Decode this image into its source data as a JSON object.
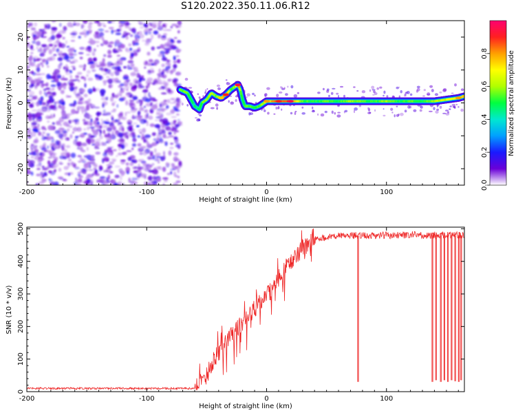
{
  "figure_title": "S120.2022.350.11.06.R12",
  "chart_data": [
    {
      "type": "heatmap",
      "title": "S120.2022.350.11.06.R12",
      "xlabel": "Height of straight line (km)",
      "ylabel": "Frequency (Hz)",
      "xlim": [
        -200,
        165
      ],
      "ylim": [
        -25,
        25
      ],
      "x_ticks": [
        -200,
        -100,
        0,
        100
      ],
      "y_ticks": [
        -20,
        -10,
        0,
        10,
        20
      ],
      "colorbar": {
        "label": "Normalized spectral amplitude",
        "range": [
          0,
          1
        ],
        "ticks": [
          "0.0",
          "0.2",
          "0.4",
          "0.6",
          "0.8"
        ],
        "colors": [
          "#ffffff",
          "#6a00d8",
          "#1a1aff",
          "#00a0ff",
          "#00e8d0",
          "#00ff40",
          "#b0ff00",
          "#ffff00",
          "#ffa000",
          "#ff2020",
          "#ff0070"
        ]
      },
      "noise_region_x": [
        -200,
        -72
      ],
      "ridge": {
        "x": [
          -72,
          -66,
          -60,
          -56,
          -54,
          -50,
          -46,
          -42,
          -38,
          -34,
          -30,
          -26,
          -24,
          -22,
          -20,
          -18,
          -14,
          -10,
          -6,
          -2,
          0,
          10,
          20,
          30,
          40,
          50,
          60,
          70,
          80,
          90,
          100,
          110,
          120,
          130,
          140,
          150,
          160,
          165
        ],
        "y": [
          4,
          3,
          -1,
          -2,
          0,
          1,
          3,
          2,
          1.5,
          2.5,
          4,
          5,
          5.5,
          4,
          1,
          -1,
          -1,
          -1.5,
          -1,
          0,
          0.5,
          0.5,
          0.5,
          0.5,
          0.5,
          0.5,
          0.5,
          0.5,
          0.5,
          0.5,
          0.5,
          0.5,
          0.5,
          0.5,
          0.5,
          1,
          1.5,
          2
        ],
        "amplitude": [
          0.55,
          0.55,
          0.45,
          0.5,
          0.55,
          0.6,
          0.6,
          0.55,
          0.7,
          0.85,
          0.55,
          0.6,
          0.9,
          0.6,
          0.45,
          0.55,
          0.55,
          0.5,
          0.55,
          0.6,
          0.75,
          0.85,
          0.9,
          0.55,
          0.5,
          0.55,
          0.5,
          0.6,
          0.55,
          0.5,
          0.6,
          0.5,
          0.55,
          0.5,
          0.6,
          0.65,
          0.75,
          0.7
        ]
      }
    },
    {
      "type": "line",
      "xlabel": "Height of straight line (km)",
      "ylabel": "SNR (10 * v/v)",
      "xlim": [
        -200,
        165
      ],
      "ylim": [
        0,
        505
      ],
      "x_ticks": [
        -200,
        -100,
        0,
        100
      ],
      "y_ticks": [
        0,
        100,
        200,
        300,
        400,
        500
      ],
      "color": "#ee2222",
      "series": [
        {
          "x": [
            -200,
            -190,
            -180,
            -170,
            -160,
            -150,
            -140,
            -130,
            -120,
            -110,
            -100,
            -90,
            -80,
            -70,
            -60,
            -55,
            -50,
            -45,
            -40,
            -35,
            -30,
            -25,
            -20,
            -15,
            -10,
            -5,
            0,
            5,
            10,
            15,
            20,
            25,
            30,
            35,
            40,
            45,
            50,
            60,
            70,
            80,
            90,
            100,
            110,
            120,
            130,
            140,
            150,
            160,
            165
          ],
          "values": [
            10,
            10,
            10,
            10,
            10,
            10,
            10,
            10,
            10,
            10,
            10,
            10,
            10,
            10,
            10,
            30,
            50,
            90,
            120,
            150,
            175,
            190,
            210,
            230,
            255,
            275,
            295,
            320,
            350,
            375,
            400,
            420,
            440,
            455,
            465,
            470,
            475,
            478,
            480,
            478,
            480,
            480,
            480,
            482,
            480,
            480,
            480,
            480,
            480
          ]
        }
      ],
      "dropouts": [
        {
          "x": 76,
          "y": 30
        },
        {
          "x": 138,
          "y": 30
        },
        {
          "x": 141,
          "y": 35
        },
        {
          "x": 145,
          "y": 30
        },
        {
          "x": 148,
          "y": 35
        },
        {
          "x": 151,
          "y": 30
        },
        {
          "x": 154,
          "y": 35
        },
        {
          "x": 157,
          "y": 32
        },
        {
          "x": 160,
          "y": 30
        },
        {
          "x": 162,
          "y": 35
        }
      ]
    }
  ]
}
